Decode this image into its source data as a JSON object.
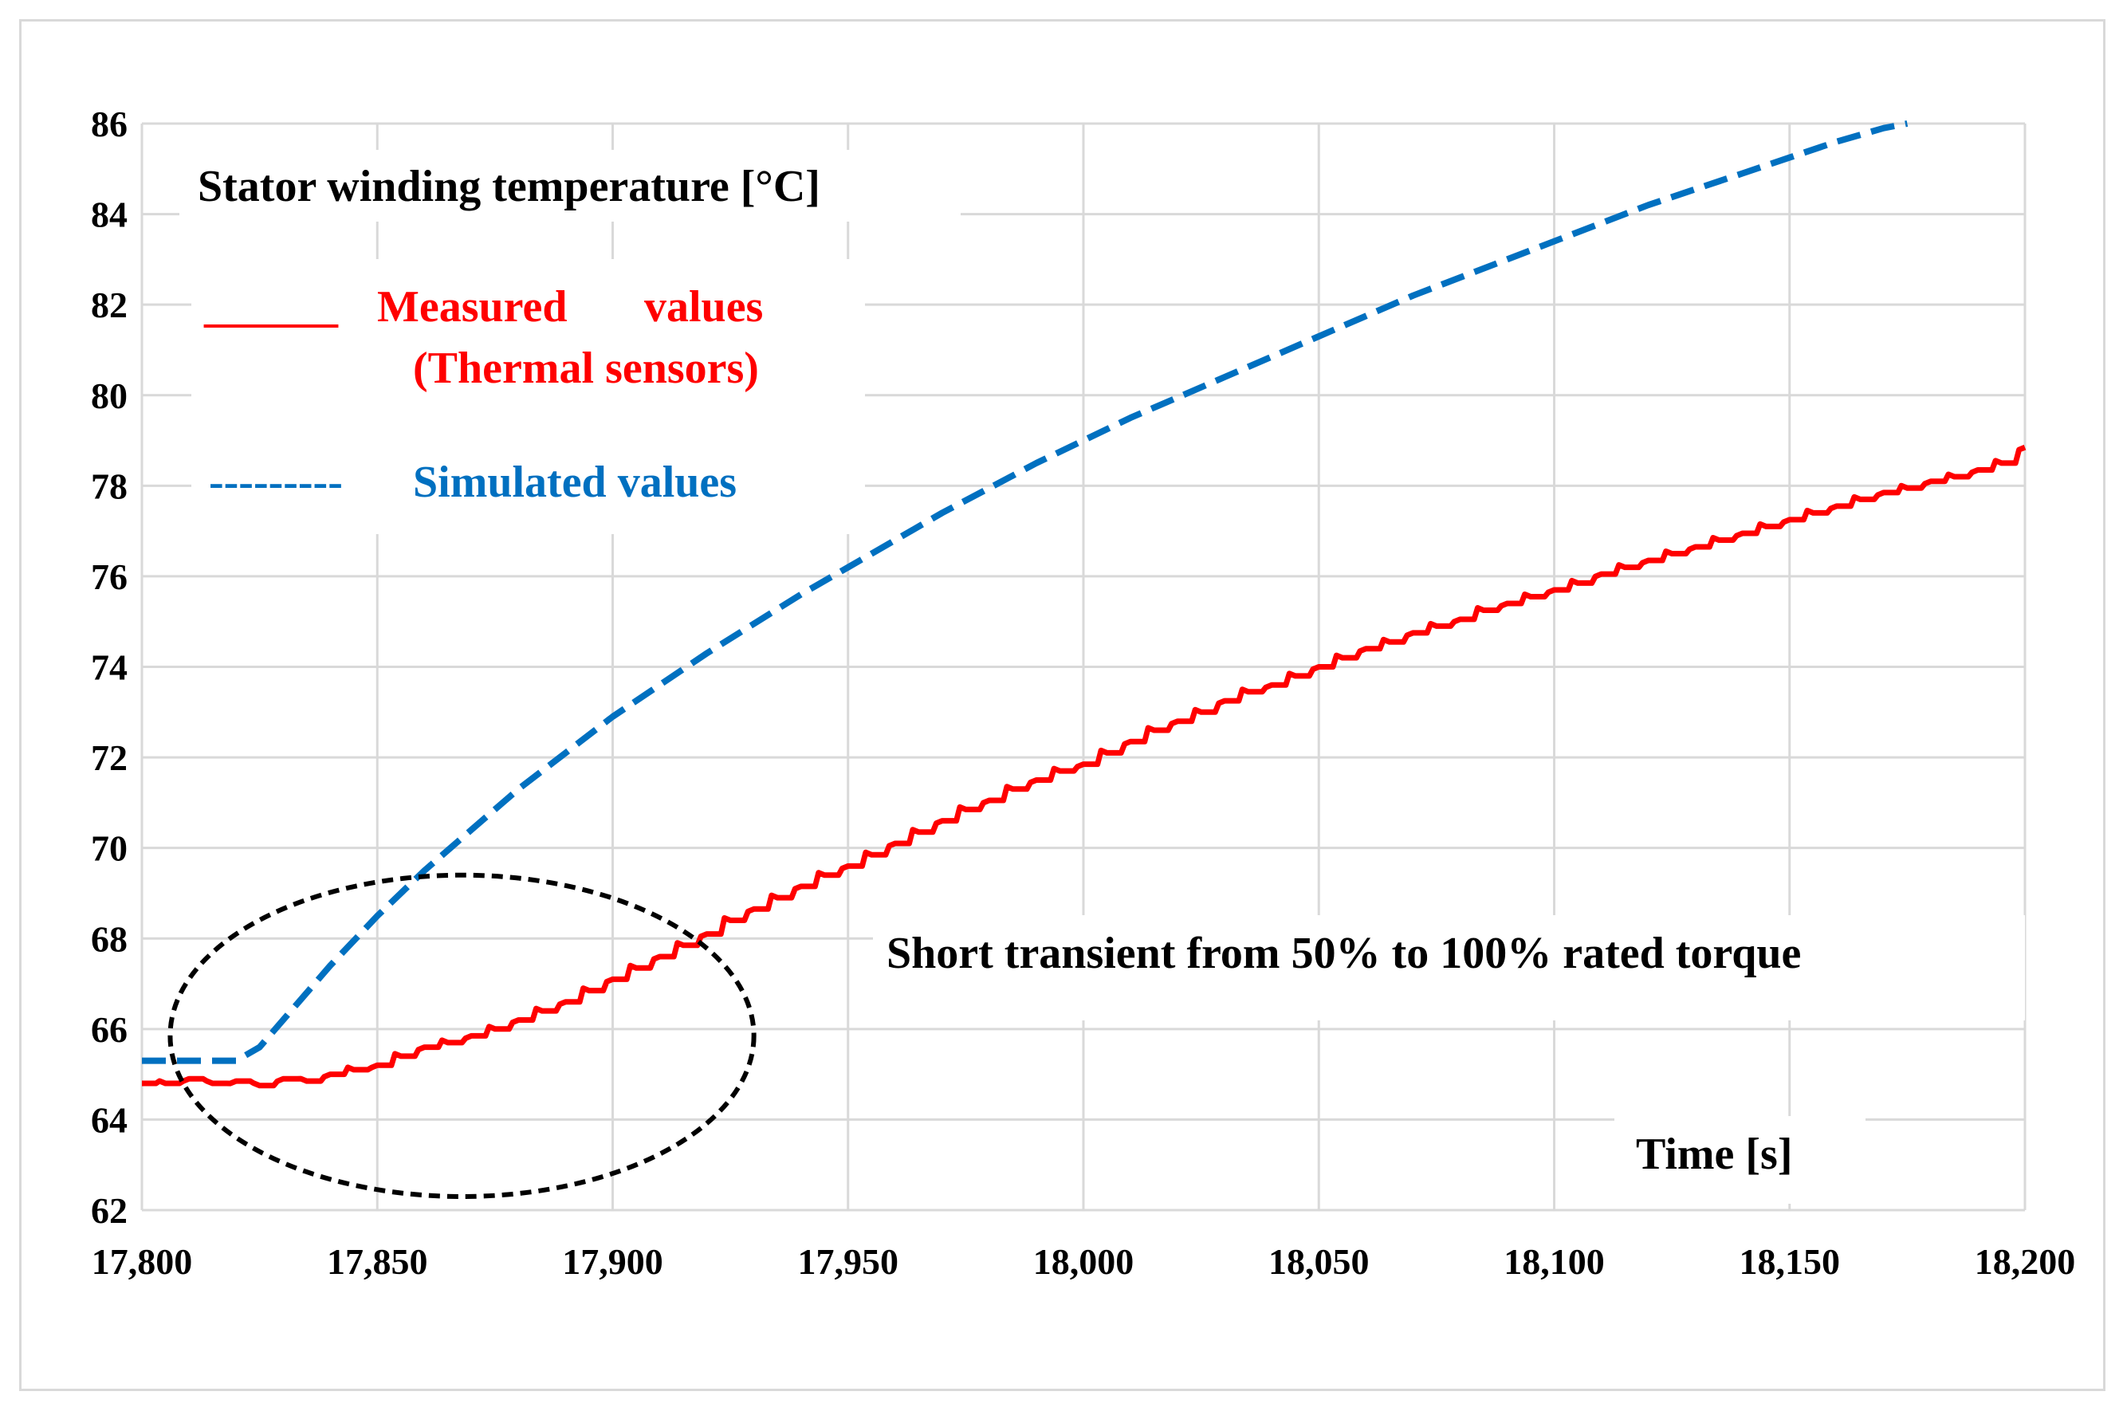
{
  "chart_data": {
    "type": "line",
    "title": "Stator winding temperature [°C]",
    "xlabel": "Time [s]",
    "ylabel": "",
    "xlim": [
      17800,
      18200
    ],
    "ylim": [
      62,
      86
    ],
    "x_ticks": [
      17800,
      17850,
      17900,
      17950,
      18000,
      18050,
      18100,
      18150,
      18200
    ],
    "x_tick_labels": [
      "17,800",
      "17,850",
      "17,900",
      "17,950",
      "18,000",
      "18,050",
      "18,100",
      "18,150",
      "18,200"
    ],
    "y_ticks": [
      62,
      64,
      66,
      68,
      70,
      72,
      74,
      76,
      78,
      80,
      82,
      84,
      86
    ],
    "y_tick_labels": [
      "62",
      "64",
      "66",
      "68",
      "70",
      "72",
      "74",
      "76",
      "78",
      "80",
      "82",
      "84",
      "86"
    ],
    "grid": true,
    "legend": {
      "measured_line": "______",
      "measured_label": "Measured",
      "measured_label2": "values",
      "measured_sub": "(Thermal sensors)",
      "simulated_line": "---------",
      "simulated_label": "Simulated values"
    },
    "annotation": "Short transient from 50% to 100% rated torque",
    "series": [
      {
        "name": "Measured values (Thermal sensors)",
        "color": "#ff0000",
        "style": "solid",
        "x": [
          17800,
          17805,
          17810,
          17815,
          17820,
          17825,
          17830,
          17835,
          17840,
          17845,
          17850,
          17855,
          17860,
          17865,
          17870,
          17875,
          17880,
          17885,
          17890,
          17895,
          17900,
          17905,
          17910,
          17915,
          17920,
          17925,
          17930,
          17935,
          17940,
          17945,
          17950,
          17955,
          17960,
          17965,
          17970,
          17975,
          17980,
          17985,
          17990,
          17995,
          18000,
          18005,
          18010,
          18015,
          18020,
          18025,
          18030,
          18035,
          18040,
          18045,
          18050,
          18055,
          18060,
          18065,
          18070,
          18075,
          18080,
          18085,
          18090,
          18095,
          18100,
          18105,
          18110,
          18115,
          18120,
          18125,
          18130,
          18135,
          18140,
          18145,
          18150,
          18155,
          18160,
          18165,
          18170,
          18175,
          18180,
          18185,
          18190,
          18195,
          18200
        ],
        "values": [
          64.8,
          64.8,
          64.9,
          64.8,
          64.85,
          64.75,
          64.9,
          64.85,
          65.0,
          65.1,
          65.2,
          65.4,
          65.6,
          65.7,
          65.85,
          66.0,
          66.2,
          66.4,
          66.6,
          66.85,
          67.1,
          67.35,
          67.6,
          67.85,
          68.1,
          68.4,
          68.65,
          68.9,
          69.15,
          69.4,
          69.6,
          69.85,
          70.1,
          70.35,
          70.6,
          70.85,
          71.05,
          71.3,
          71.5,
          71.7,
          71.85,
          72.1,
          72.35,
          72.6,
          72.8,
          73.0,
          73.25,
          73.45,
          73.6,
          73.8,
          74.0,
          74.2,
          74.4,
          74.55,
          74.75,
          74.9,
          75.05,
          75.25,
          75.4,
          75.55,
          75.7,
          75.85,
          76.05,
          76.2,
          76.35,
          76.5,
          76.65,
          76.8,
          76.95,
          77.1,
          77.25,
          77.4,
          77.55,
          77.7,
          77.85,
          77.95,
          78.1,
          78.2,
          78.35,
          78.5,
          78.85
        ]
      },
      {
        "name": "Simulated values",
        "color": "#0070c0",
        "style": "dashed",
        "x": [
          17800,
          17820,
          17825,
          17830,
          17835,
          17840,
          17850,
          17860,
          17870,
          17880,
          17890,
          17900,
          17910,
          17920,
          17930,
          17940,
          17950,
          17960,
          17970,
          17980,
          17990,
          18000,
          18010,
          18020,
          18030,
          18040,
          18050,
          18060,
          18070,
          18080,
          18090,
          18100,
          18110,
          18120,
          18130,
          18140,
          18150,
          18160,
          18170,
          18175
        ],
        "values": [
          65.3,
          65.3,
          65.6,
          66.2,
          66.8,
          67.4,
          68.5,
          69.5,
          70.4,
          71.3,
          72.1,
          72.9,
          73.6,
          74.3,
          74.95,
          75.6,
          76.2,
          76.8,
          77.4,
          77.95,
          78.5,
          79.0,
          79.5,
          79.95,
          80.4,
          80.85,
          81.3,
          81.75,
          82.2,
          82.6,
          83.0,
          83.4,
          83.8,
          84.2,
          84.55,
          84.9,
          85.25,
          85.6,
          85.9,
          86.0
        ]
      }
    ],
    "highlight_region": {
      "shape": "ellipse",
      "center_x": 17868,
      "center_y": 65.85,
      "half_width_x": 62,
      "half_height_y": 3.55
    }
  }
}
